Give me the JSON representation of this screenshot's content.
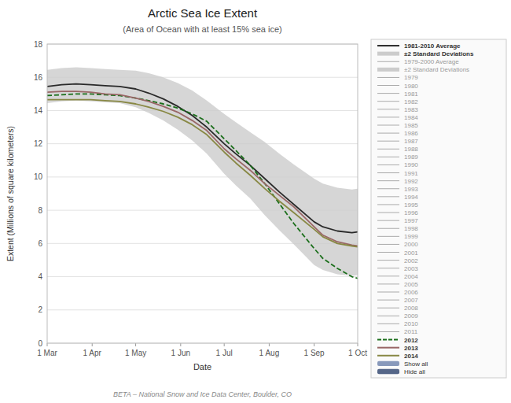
{
  "chart_data": {
    "type": "line",
    "title": "Arctic Sea Ice Extent",
    "subtitle": "(Area of Ocean with at least 15% sea ice)",
    "x_label": "Date",
    "y_label": "Extent (Millions of square kilometers)",
    "footnote": "BETA – National Snow and Ice Data Center, Boulder, CO",
    "x": [
      0,
      10,
      20,
      30,
      40,
      50,
      61,
      70,
      80,
      90,
      100,
      110,
      122,
      130,
      140,
      150,
      160,
      170,
      184,
      190,
      200,
      210,
      214
    ],
    "xlim": [
      0,
      214
    ],
    "xticks": [
      {
        "value": 0,
        "label": "1 Mar"
      },
      {
        "value": 31,
        "label": "1 Apr"
      },
      {
        "value": 61,
        "label": "1 May"
      },
      {
        "value": 92,
        "label": "1 Jun"
      },
      {
        "value": 122,
        "label": "1 Jul"
      },
      {
        "value": 153,
        "label": "1 Aug"
      },
      {
        "value": 184,
        "label": "1 Sep"
      },
      {
        "value": 214,
        "label": "1 Oct"
      }
    ],
    "ylim": [
      0,
      18
    ],
    "yticks": [
      0,
      2,
      4,
      6,
      8,
      10,
      12,
      14,
      16,
      18
    ],
    "grid": true,
    "legend": "right",
    "series": [
      {
        "name": "1981-2010 Average",
        "color": "#2a2a2a",
        "line_style": "solid",
        "values": [
          15.45,
          15.55,
          15.6,
          15.55,
          15.5,
          15.45,
          15.3,
          15.05,
          14.7,
          14.25,
          13.7,
          13.0,
          12.0,
          11.4,
          10.7,
          9.9,
          9.1,
          8.35,
          7.3,
          7.0,
          6.75,
          6.65,
          6.7
        ]
      },
      {
        "name": "±2 Standard Deviations",
        "type": "area",
        "color": "#cccccc",
        "low": [
          14.45,
          14.55,
          14.6,
          14.55,
          14.5,
          14.45,
          14.2,
          13.85,
          13.4,
          12.85,
          12.2,
          11.4,
          10.2,
          9.5,
          8.7,
          7.7,
          6.8,
          5.95,
          4.7,
          4.4,
          4.15,
          4.05,
          4.1
        ],
        "high": [
          16.45,
          16.55,
          16.6,
          16.55,
          16.5,
          16.45,
          16.4,
          16.25,
          16.0,
          15.65,
          15.2,
          14.6,
          13.8,
          13.3,
          12.7,
          12.1,
          11.4,
          10.75,
          9.9,
          9.6,
          9.35,
          9.25,
          9.3
        ]
      },
      {
        "name": "2012",
        "color": "#1a6e1a",
        "line_style": "dashed",
        "values": [
          14.9,
          14.95,
          15.0,
          15.0,
          14.95,
          14.9,
          14.75,
          14.6,
          14.4,
          14.15,
          13.8,
          13.35,
          12.3,
          11.6,
          10.7,
          9.6,
          8.4,
          7.2,
          5.7,
          5.1,
          4.5,
          4.0,
          3.9
        ]
      },
      {
        "name": "2013",
        "color": "#996666",
        "line_style": "solid",
        "values": [
          15.1,
          15.15,
          15.15,
          15.1,
          15.0,
          14.95,
          14.75,
          14.55,
          14.25,
          13.9,
          13.4,
          12.8,
          11.7,
          11.1,
          10.4,
          9.6,
          8.9,
          8.2,
          7.0,
          6.5,
          6.1,
          5.9,
          5.85
        ]
      },
      {
        "name": "2014",
        "color": "#888844",
        "line_style": "solid",
        "values": [
          14.65,
          14.65,
          14.65,
          14.65,
          14.6,
          14.55,
          14.4,
          14.2,
          13.95,
          13.6,
          13.15,
          12.55,
          11.5,
          10.85,
          10.1,
          9.3,
          8.55,
          7.85,
          6.85,
          6.4,
          6.0,
          5.85,
          5.8
        ]
      }
    ],
    "legend_faded": [
      {
        "name": "1979-2000 Average",
        "color": "#aaaaaa",
        "type": "line"
      },
      {
        "name": "±2 Standard Deviations",
        "color": "#cccccc",
        "type": "area"
      },
      {
        "name": "1979",
        "color": "#aaaaaa",
        "type": "line"
      },
      {
        "name": "1980",
        "color": "#aaaaaa",
        "type": "line"
      },
      {
        "name": "1981",
        "color": "#aaaaaa",
        "type": "line"
      },
      {
        "name": "1982",
        "color": "#aaaaaa",
        "type": "line"
      },
      {
        "name": "1983",
        "color": "#aaaaaa",
        "type": "line"
      },
      {
        "name": "1984",
        "color": "#aaaaaa",
        "type": "line"
      },
      {
        "name": "1985",
        "color": "#aaaaaa",
        "type": "line"
      },
      {
        "name": "1986",
        "color": "#aaaaaa",
        "type": "line"
      },
      {
        "name": "1987",
        "color": "#aaaaaa",
        "type": "line"
      },
      {
        "name": "1988",
        "color": "#aaaaaa",
        "type": "line"
      },
      {
        "name": "1989",
        "color": "#aaaaaa",
        "type": "line"
      },
      {
        "name": "1990",
        "color": "#aaaaaa",
        "type": "line"
      },
      {
        "name": "1991",
        "color": "#aaaaaa",
        "type": "line"
      },
      {
        "name": "1992",
        "color": "#aaaaaa",
        "type": "line"
      },
      {
        "name": "1993",
        "color": "#aaaaaa",
        "type": "line"
      },
      {
        "name": "1994",
        "color": "#aaaaaa",
        "type": "line"
      },
      {
        "name": "1995",
        "color": "#aaaaaa",
        "type": "line"
      },
      {
        "name": "1996",
        "color": "#aaaaaa",
        "type": "line"
      },
      {
        "name": "1997",
        "color": "#aaaaaa",
        "type": "line"
      },
      {
        "name": "1998",
        "color": "#aaaaaa",
        "type": "line"
      },
      {
        "name": "1999",
        "color": "#aaaaaa",
        "type": "line"
      },
      {
        "name": "2000",
        "color": "#aaaaaa",
        "type": "line"
      },
      {
        "name": "2001",
        "color": "#aaaaaa",
        "type": "line"
      },
      {
        "name": "2002",
        "color": "#aaaaaa",
        "type": "line"
      },
      {
        "name": "2003",
        "color": "#aaaaaa",
        "type": "line"
      },
      {
        "name": "2004",
        "color": "#aaaaaa",
        "type": "line"
      },
      {
        "name": "2005",
        "color": "#aaaaaa",
        "type": "line"
      },
      {
        "name": "2006",
        "color": "#aaaaaa",
        "type": "line"
      },
      {
        "name": "2007",
        "color": "#aaaaaa",
        "type": "line"
      },
      {
        "name": "2008",
        "color": "#aaaaaa",
        "type": "line"
      },
      {
        "name": "2009",
        "color": "#aaaaaa",
        "type": "line"
      },
      {
        "name": "2010",
        "color": "#aaaaaa",
        "type": "line"
      },
      {
        "name": "2011",
        "color": "#aaaaaa",
        "type": "line"
      }
    ],
    "buttons": [
      {
        "label": "Show all",
        "color": "#8899bb"
      },
      {
        "label": "Hide all",
        "color": "#556688"
      }
    ]
  }
}
